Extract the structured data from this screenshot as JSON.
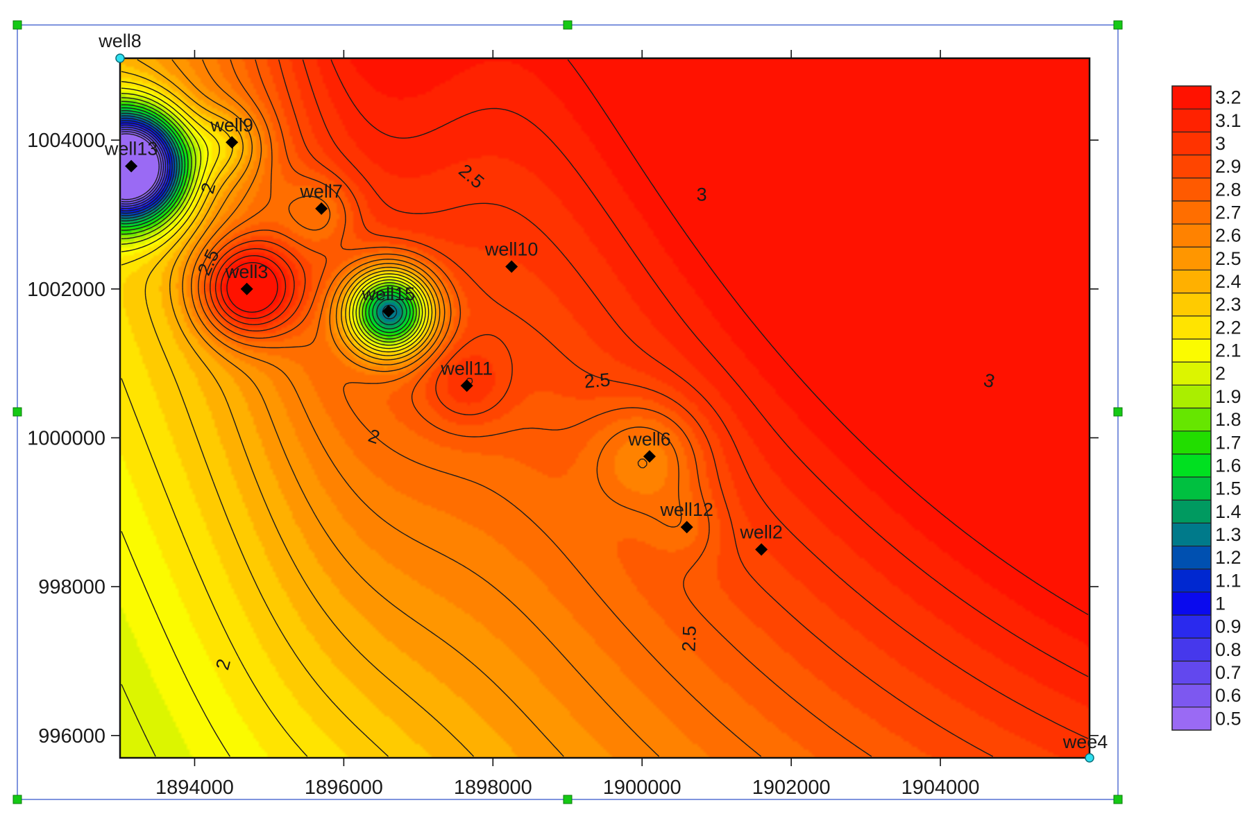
{
  "chart_data": {
    "type": "contour",
    "x_ticks": [
      1894000,
      1896000,
      1898000,
      1900000,
      1902000,
      1904000
    ],
    "y_ticks": [
      996000,
      998000,
      1000000,
      1002000,
      1004000
    ],
    "x_tick_labels": [
      "1894000",
      "1896000",
      "1898000",
      "1900000",
      "1902000",
      "1904000"
    ],
    "y_tick_labels": [
      "996000",
      "998000",
      "1000000",
      "1002000",
      "1004000"
    ],
    "xlim": [
      1893000,
      1906000
    ],
    "ylim": [
      995700,
      1005100
    ],
    "wells": [
      {
        "name": "well8",
        "x": 1893000,
        "y": 1005100,
        "marker": "handle"
      },
      {
        "name": "well9",
        "x": 1894500,
        "y": 1003970,
        "marker": "diamond"
      },
      {
        "name": "well13",
        "x": 1893150,
        "y": 1003650,
        "marker": "diamond"
      },
      {
        "name": "well7",
        "x": 1895700,
        "y": 1003080,
        "marker": "diamond"
      },
      {
        "name": "well3",
        "x": 1894700,
        "y": 1002000,
        "marker": "diamond"
      },
      {
        "name": "well10",
        "x": 1898250,
        "y": 1002300,
        "marker": "diamond"
      },
      {
        "name": "well15",
        "x": 1896600,
        "y": 1001700,
        "marker": "diamond"
      },
      {
        "name": "well11",
        "x": 1897650,
        "y": 1000700,
        "marker": "diamond"
      },
      {
        "name": "well6",
        "x": 1900100,
        "y": 999750,
        "marker": "diamond"
      },
      {
        "name": "well12",
        "x": 1900600,
        "y": 998800,
        "marker": "diamond"
      },
      {
        "name": "well2",
        "x": 1901600,
        "y": 998500,
        "marker": "diamond"
      },
      {
        "name": "wee4",
        "x": 1906000,
        "y": 995700,
        "marker": "handle"
      }
    ],
    "contour_labels": [
      {
        "text": "2",
        "x": 1894200,
        "y": 1003350,
        "rot": -75
      },
      {
        "text": "2.5",
        "x": 1894200,
        "y": 1002350,
        "rot": -65
      },
      {
        "text": "2.5",
        "x": 1897700,
        "y": 1003500,
        "rot": 40
      },
      {
        "text": "3",
        "x": 1900800,
        "y": 1003250,
        "rot": 0
      },
      {
        "text": "2.5",
        "x": 1899400,
        "y": 1000750,
        "rot": -5
      },
      {
        "text": "2",
        "x": 1896400,
        "y": 1000000,
        "rot": 20
      },
      {
        "text": "3",
        "x": 1904650,
        "y": 1000750,
        "rot": 15
      },
      {
        "text": "2",
        "x": 1894400,
        "y": 996950,
        "rot": -75
      },
      {
        "text": "2.5",
        "x": 1900650,
        "y": 997300,
        "rot": -88
      }
    ],
    "colorbar": {
      "levels": [
        "3.2",
        "3.1",
        "3",
        "2.9",
        "2.8",
        "2.7",
        "2.6",
        "2.5",
        "2.4",
        "2.3",
        "2.2",
        "2.1",
        "2",
        "1.9",
        "1.8",
        "1.7",
        "1.6",
        "1.5",
        "1.4",
        "1.3",
        "1.2",
        "1.1",
        "1",
        "0.9",
        "0.8",
        "0.7",
        "0.6",
        "0.5"
      ],
      "colors": [
        "#ff1200",
        "#ff2200",
        "#ff3300",
        "#ff4500",
        "#ff5a00",
        "#ff6e00",
        "#ff8200",
        "#ff9600",
        "#ffb000",
        "#ffcb00",
        "#ffe400",
        "#fbfb00",
        "#dcf500",
        "#aaee00",
        "#66e600",
        "#22dd00",
        "#00e020",
        "#00c040",
        "#009a60",
        "#007a8a",
        "#0050b0",
        "#0028d0",
        "#0a0aee",
        "#2a2aee",
        "#4638ec",
        "#6248ee",
        "#7d58f0",
        "#9a6af4"
      ]
    }
  }
}
